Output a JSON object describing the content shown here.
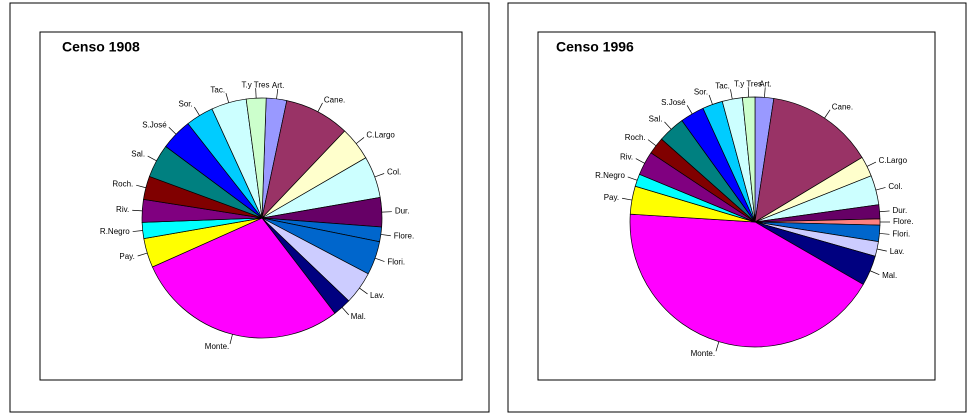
{
  "chart_data": [
    {
      "type": "pie",
      "title": "Censo 1908",
      "categories": [
        "Art.",
        "Cane.",
        "C.Largo",
        "Col.",
        "Dur.",
        "Flore.",
        "Flori.",
        "Lav.",
        "Mal.",
        "Monte.",
        "Pay.",
        "R.Negro",
        "Riv.",
        "Roch.",
        "Sal.",
        "S.José",
        "Sor.",
        "Tac.",
        "T.y Tres"
      ],
      "values": [
        2.8,
        8.9,
        4.6,
        5.7,
        4.0,
        2.0,
        4.6,
        4.5,
        2.5,
        29.1,
        4.0,
        2.2,
        3.1,
        3.2,
        4.6,
        4.3,
        3.8,
        4.8,
        2.7
      ],
      "colors": [
        "#9999ff",
        "#993366",
        "#ffffcc",
        "#ccffff",
        "#660066",
        "#0066cc",
        "#0066cc",
        "#ccccff",
        "#000080",
        "#ff00ff",
        "#ffff00",
        "#00ffff",
        "#800080",
        "#800000",
        "#008080",
        "#0000ff",
        "#00ccff",
        "#ccffff",
        "#ccffcc"
      ]
    },
    {
      "type": "pie",
      "title": "Censo 1996",
      "categories": [
        "Art.",
        "Cane.",
        "C.Largo",
        "Col.",
        "Dur.",
        "Flore.",
        "Flori.",
        "Lav.",
        "Mal.",
        "Monte.",
        "Pay.",
        "R.Negro",
        "Riv.",
        "Roch.",
        "Sal.",
        "S.José",
        "Sor.",
        "Tac.",
        "T.y Tres"
      ],
      "values": [
        2.4,
        13.9,
        2.6,
        3.8,
        1.8,
        0.8,
        2.1,
        1.9,
        3.9,
        42.5,
        3.6,
        1.6,
        3.1,
        2.2,
        3.5,
        3.1,
        2.6,
        2.6,
        1.6
      ],
      "colors": [
        "#9999ff",
        "#993366",
        "#ffffcc",
        "#ccffff",
        "#660066",
        "#ff8080",
        "#0066cc",
        "#ccccff",
        "#000080",
        "#ff00ff",
        "#ffff00",
        "#00ffff",
        "#800080",
        "#800000",
        "#008080",
        "#0000ff",
        "#00ccff",
        "#ccffff",
        "#ccffcc"
      ]
    }
  ]
}
